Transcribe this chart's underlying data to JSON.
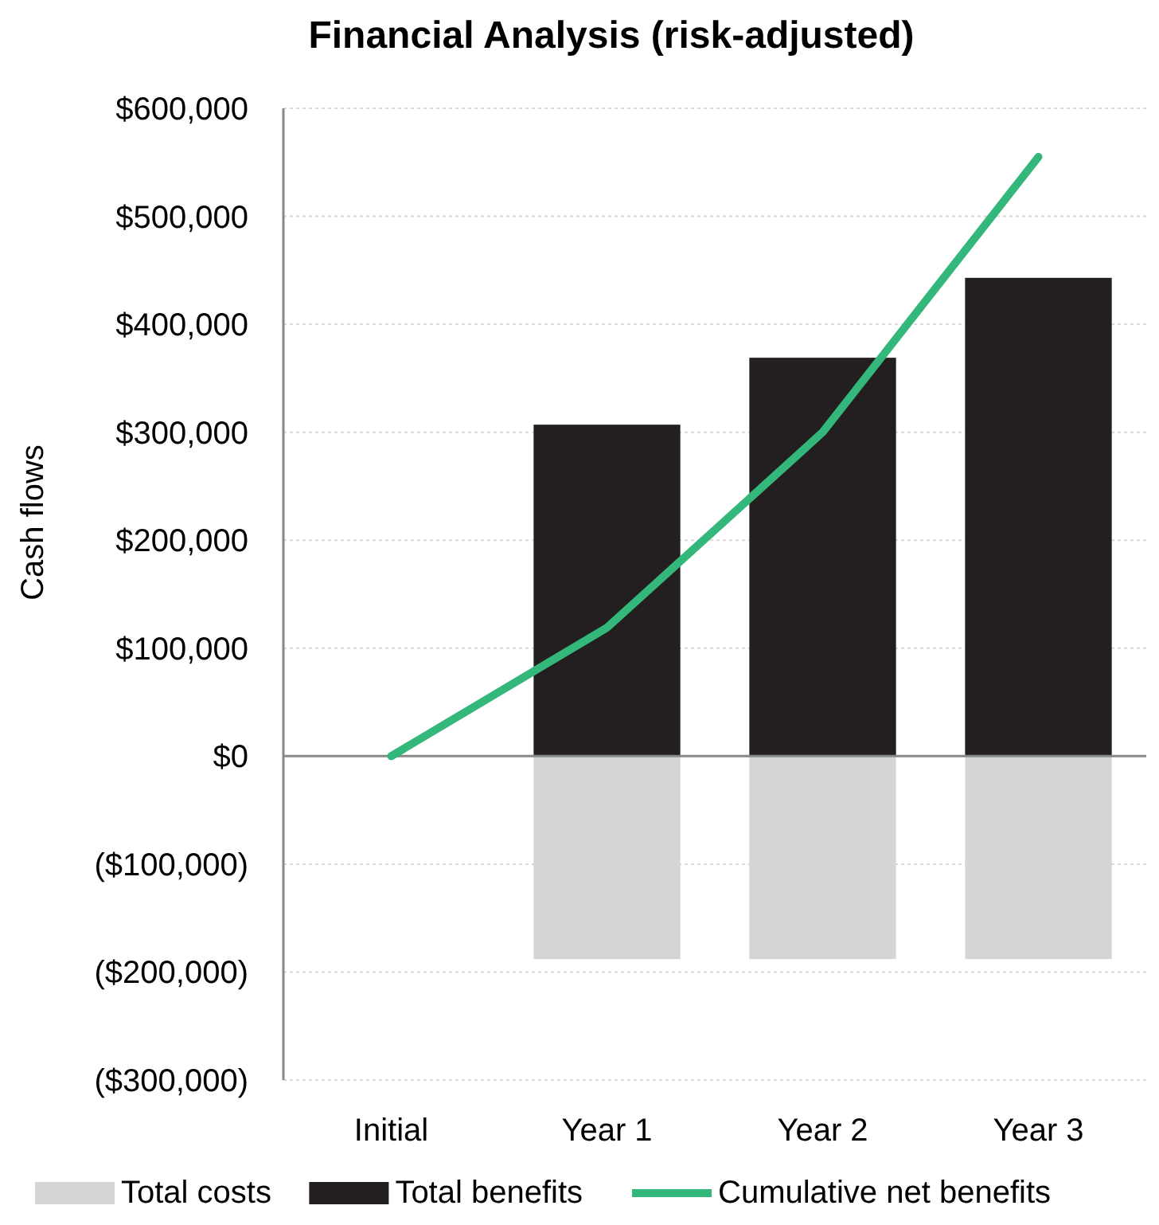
{
  "chart_data": {
    "type": "bar",
    "title": "Financial Analysis (risk-adjusted)",
    "ylabel": "Cash flows",
    "categories": [
      "Initial",
      "Year 1",
      "Year 2",
      "Year 3"
    ],
    "stacked": true,
    "series": [
      {
        "name": "Total costs",
        "color": "#d4d5d6",
        "values": [
          null,
          -188000,
          -188000,
          -188000
        ]
      },
      {
        "name": "Total benefits",
        "color": "#231f20",
        "values": [
          null,
          307000,
          369000,
          443000
        ]
      },
      {
        "name": "Cumulative net benefits",
        "type": "line",
        "color": "#33b77a",
        "values": [
          0,
          119000,
          300000,
          555000
        ]
      }
    ],
    "ylim": [
      -300000,
      600000
    ],
    "yticks": [
      {
        "value": -300000,
        "label": "($300,000)"
      },
      {
        "value": -200000,
        "label": "($200,000)"
      },
      {
        "value": -100000,
        "label": "($100,000)"
      },
      {
        "value": 0,
        "label": "$0"
      },
      {
        "value": 100000,
        "label": "$100,000"
      },
      {
        "value": 200000,
        "label": "$200,000"
      },
      {
        "value": 300000,
        "label": "$300,000"
      },
      {
        "value": 400000,
        "label": "$400,000"
      },
      {
        "value": 500000,
        "label": "$500,000"
      },
      {
        "value": 600000,
        "label": "$600,000"
      }
    ],
    "grid": "y",
    "legend": "bottom",
    "marker": "none"
  }
}
